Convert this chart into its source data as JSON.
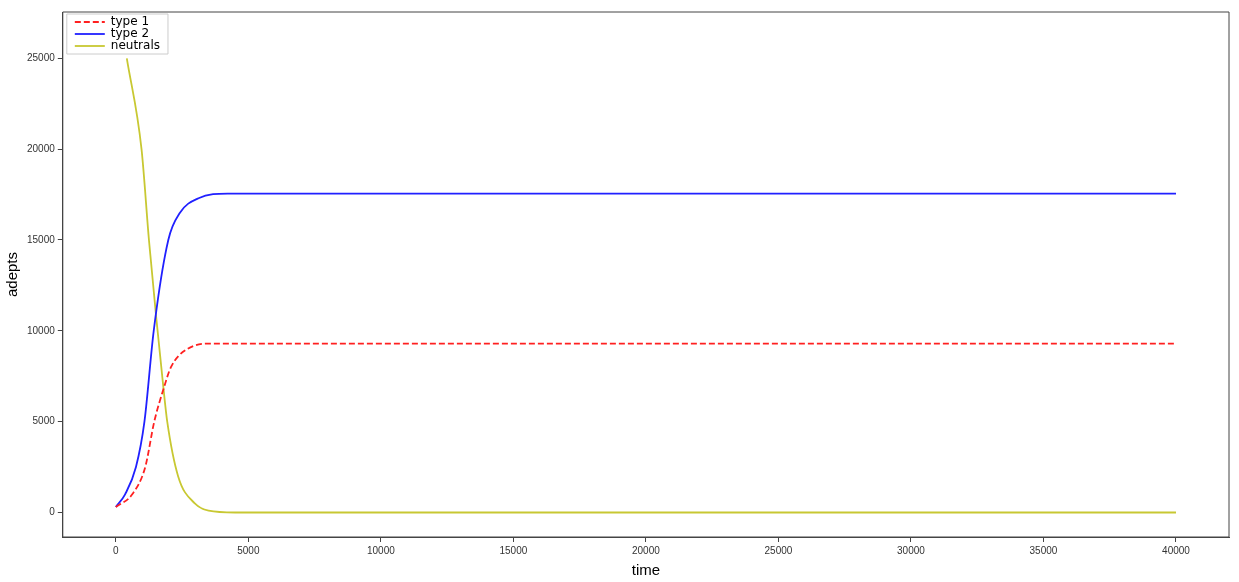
{
  "chart_data": {
    "type": "line",
    "xlabel": "time",
    "ylabel": "adepts",
    "xlim": [
      -2000,
      42000
    ],
    "ylim": [
      -1350,
      27550
    ],
    "xticks": [
      0,
      5000,
      10000,
      15000,
      20000,
      25000,
      30000,
      35000,
      40000
    ],
    "yticks": [
      0,
      5000,
      10000,
      15000,
      20000,
      25000
    ],
    "grid": false,
    "legend": "top left",
    "marker": "none",
    "series": [
      {
        "name": "type 1",
        "color": "#ff2020",
        "line_style": "dashed",
        "x": [
          0,
          620,
          1110,
          1450,
          1800,
          2080,
          2700,
          3670,
          40000
        ],
        "values": [
          300,
          1000,
          2500,
          5000,
          6800,
          8000,
          9000,
          9300,
          9300
        ]
      },
      {
        "name": "type 2",
        "color": "#2020ff",
        "line_style": "solid",
        "x": [
          0,
          350,
          760,
          1080,
          1430,
          1980,
          2420,
          3120,
          4220,
          40000
        ],
        "values": [
          300,
          1000,
          2500,
          5000,
          10000,
          15000,
          16500,
          17300,
          17550,
          17550
        ]
      },
      {
        "name": "neutrals",
        "color": "#c8c832",
        "line_style": "solid",
        "x": [
          415,
          970,
          1250,
          1520,
          1800,
          1940,
          2350,
          2980,
          3500,
          4500,
          40000
        ],
        "values": [
          25000,
          20000,
          15000,
          10800,
          6800,
          5000,
          2000,
          500,
          100,
          0,
          0
        ]
      }
    ]
  }
}
